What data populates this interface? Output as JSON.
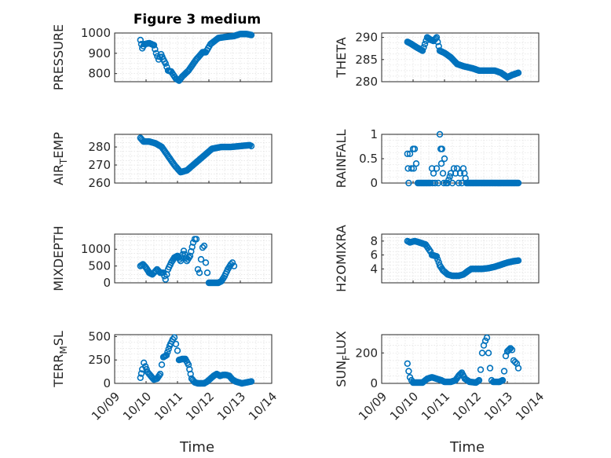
{
  "figure": {
    "title": "Figure 3 medium",
    "x_label": "Time",
    "marker_color": "#0072BD",
    "axis_color": "#262626",
    "grid_color": "#d9d9d9"
  },
  "chart_data": [
    {
      "type": "scatter",
      "ylabel": "PRESSURE",
      "xlim": [
        "10/09",
        "10/14"
      ],
      "ylim": [
        760,
        1000
      ],
      "yticks": [
        800,
        900,
        1000
      ],
      "x_day_range": [
        9.8,
        13.6
      ],
      "xticks": [],
      "grid": true,
      "keypoints": [
        [
          9.82,
          965
        ],
        [
          9.88,
          925
        ],
        [
          9.95,
          945
        ],
        [
          10.1,
          950
        ],
        [
          10.25,
          940
        ],
        [
          10.32,
          900
        ],
        [
          10.4,
          870
        ],
        [
          10.48,
          895
        ],
        [
          10.55,
          870
        ],
        [
          10.62,
          850
        ],
        [
          10.7,
          815
        ],
        [
          10.8,
          810
        ],
        [
          10.95,
          775
        ],
        [
          11.05,
          765
        ],
        [
          11.15,
          785
        ],
        [
          11.35,
          815
        ],
        [
          11.6,
          870
        ],
        [
          11.8,
          905
        ],
        [
          11.9,
          905
        ],
        [
          12.05,
          945
        ],
        [
          12.3,
          975
        ],
        [
          12.5,
          980
        ],
        [
          12.8,
          985
        ],
        [
          13.0,
          995
        ],
        [
          13.2,
          995
        ],
        [
          13.35,
          990
        ]
      ]
    },
    {
      "type": "scatter",
      "ylabel": "THETA",
      "xlim": [
        "10/09",
        "10/14"
      ],
      "ylim": [
        280,
        291
      ],
      "yticks": [
        280,
        285,
        290
      ],
      "x_day_range": [
        9.8,
        13.6
      ],
      "xticks": [],
      "grid": true,
      "keypoints": [
        [
          9.82,
          289
        ],
        [
          9.95,
          288.5
        ],
        [
          10.1,
          287.8
        ],
        [
          10.3,
          287
        ],
        [
          10.45,
          290
        ],
        [
          10.55,
          289.5
        ],
        [
          10.65,
          289.2
        ],
        [
          10.75,
          290
        ],
        [
          10.85,
          287
        ],
        [
          11.0,
          286.5
        ],
        [
          11.2,
          285.5
        ],
        [
          11.4,
          284
        ],
        [
          11.6,
          283.5
        ],
        [
          11.9,
          283
        ],
        [
          12.1,
          282.5
        ],
        [
          12.4,
          282.5
        ],
        [
          12.6,
          282.5
        ],
        [
          12.8,
          282
        ],
        [
          13.0,
          281
        ],
        [
          13.15,
          281.5
        ],
        [
          13.35,
          282
        ]
      ]
    },
    {
      "type": "scatter",
      "ylabel": "AIR_TEMP",
      "xlim": [
        "10/09",
        "10/14"
      ],
      "ylim": [
        260,
        287
      ],
      "yticks": [
        260,
        270,
        280
      ],
      "x_day_range": [
        9.8,
        13.6
      ],
      "xticks": [],
      "grid": true,
      "keypoints": [
        [
          9.82,
          285
        ],
        [
          9.92,
          283
        ],
        [
          10.1,
          283
        ],
        [
          10.3,
          282
        ],
        [
          10.5,
          280
        ],
        [
          10.7,
          275
        ],
        [
          10.9,
          270
        ],
        [
          11.1,
          266
        ],
        [
          11.3,
          267
        ],
        [
          11.5,
          270
        ],
        [
          11.7,
          273
        ],
        [
          11.9,
          276
        ],
        [
          12.1,
          279
        ],
        [
          12.4,
          280
        ],
        [
          12.7,
          280
        ],
        [
          13.0,
          280.5
        ],
        [
          13.3,
          281
        ],
        [
          13.35,
          280.5
        ]
      ]
    },
    {
      "type": "scatter",
      "ylabel": "RAINFALL",
      "xlim": [
        "10/09",
        "10/14"
      ],
      "ylim": [
        0,
        1
      ],
      "yticks": [
        0,
        0.5,
        1
      ],
      "x_day_range": [
        9.8,
        13.6
      ],
      "xticks": [],
      "grid": true,
      "keypoints": [
        [
          9.82,
          0.6
        ],
        [
          9.84,
          0.3
        ],
        [
          9.86,
          0
        ],
        [
          9.9,
          0.6
        ],
        [
          9.95,
          0.3
        ],
        [
          10.0,
          0.7
        ],
        [
          10.02,
          0.3
        ],
        [
          10.05,
          0.7
        ],
        [
          10.1,
          0.4
        ],
        [
          10.15,
          0
        ],
        [
          10.3,
          0
        ],
        [
          10.55,
          0
        ],
        [
          10.6,
          0.3
        ],
        [
          10.62,
          0
        ],
        [
          10.65,
          0.2
        ],
        [
          10.7,
          0
        ],
        [
          10.75,
          0.3
        ],
        [
          10.8,
          0
        ],
        [
          10.85,
          1
        ],
        [
          10.88,
          0.7
        ],
        [
          10.9,
          0.4
        ],
        [
          10.92,
          0.7
        ],
        [
          10.95,
          0.2
        ],
        [
          10.98,
          0
        ],
        [
          11.0,
          0.5
        ],
        [
          11.05,
          0
        ],
        [
          11.1,
          0
        ],
        [
          11.2,
          0.2
        ],
        [
          11.25,
          0
        ],
        [
          11.3,
          0.3
        ],
        [
          11.35,
          0.2
        ],
        [
          11.4,
          0.3
        ],
        [
          11.45,
          0
        ],
        [
          11.5,
          0.2
        ],
        [
          11.55,
          0
        ],
        [
          11.6,
          0.3
        ],
        [
          11.7,
          0
        ],
        [
          13.35,
          0
        ]
      ]
    },
    {
      "type": "scatter",
      "ylabel": "MIXDEPTH",
      "xlim": [
        "10/09",
        "10/14"
      ],
      "ylim": [
        0,
        1450
      ],
      "yticks": [
        0,
        500,
        1000
      ],
      "x_day_range": [
        9.8,
        13.6
      ],
      "xticks": [],
      "grid": true,
      "keypoints": [
        [
          9.82,
          500
        ],
        [
          9.9,
          550
        ],
        [
          10.0,
          450
        ],
        [
          10.1,
          300
        ],
        [
          10.2,
          250
        ],
        [
          10.35,
          400
        ],
        [
          10.45,
          300
        ],
        [
          10.55,
          300
        ],
        [
          10.62,
          100
        ],
        [
          10.7,
          400
        ],
        [
          10.8,
          600
        ],
        [
          10.9,
          750
        ],
        [
          11.0,
          800
        ],
        [
          11.1,
          650
        ],
        [
          11.2,
          950
        ],
        [
          11.3,
          650
        ],
        [
          11.4,
          800
        ],
        [
          11.5,
          1200
        ],
        [
          11.55,
          1300
        ],
        [
          11.6,
          1300
        ],
        [
          11.65,
          400
        ],
        [
          11.7,
          300
        ],
        [
          11.75,
          700
        ],
        [
          11.8,
          1050
        ],
        [
          11.85,
          1100
        ],
        [
          11.9,
          600
        ],
        [
          11.95,
          300
        ],
        [
          12.0,
          0
        ],
        [
          12.3,
          0
        ],
        [
          12.4,
          50
        ],
        [
          12.5,
          200
        ],
        [
          12.6,
          400
        ],
        [
          12.7,
          550
        ],
        [
          12.75,
          600
        ],
        [
          12.8,
          500
        ]
      ]
    },
    {
      "type": "scatter",
      "ylabel": "H2OMIXRA",
      "xlim": [
        "10/09",
        "10/14"
      ],
      "ylim": [
        2,
        9
      ],
      "yticks": [
        4,
        6,
        8
      ],
      "x_day_range": [
        9.8,
        13.6
      ],
      "xticks": [],
      "grid": true,
      "keypoints": [
        [
          9.82,
          8
        ],
        [
          9.9,
          7.8
        ],
        [
          10.05,
          8
        ],
        [
          10.2,
          7.8
        ],
        [
          10.4,
          7.5
        ],
        [
          10.55,
          6.5
        ],
        [
          10.6,
          6.0
        ],
        [
          10.75,
          5.8
        ],
        [
          10.85,
          4.5
        ],
        [
          10.95,
          3.8
        ],
        [
          11.1,
          3.2
        ],
        [
          11.25,
          3.0
        ],
        [
          11.35,
          3.0
        ],
        [
          11.45,
          3.0
        ],
        [
          11.6,
          3.2
        ],
        [
          11.75,
          3.7
        ],
        [
          11.85,
          4.0
        ],
        [
          12.0,
          4.0
        ],
        [
          12.2,
          4.0
        ],
        [
          12.4,
          4.1
        ],
        [
          12.6,
          4.3
        ],
        [
          12.8,
          4.6
        ],
        [
          13.0,
          4.9
        ],
        [
          13.2,
          5.1
        ],
        [
          13.35,
          5.2
        ]
      ]
    },
    {
      "type": "scatter",
      "ylabel": "TERR_MSL",
      "xlim": [
        "10/09",
        "10/14"
      ],
      "ylim": [
        0,
        520
      ],
      "yticks": [
        0,
        250,
        500
      ],
      "x_day_range": [
        9.8,
        13.6
      ],
      "xticks": [
        "10/09",
        "10/10",
        "10/11",
        "10/12",
        "10/13",
        "10/14"
      ],
      "grid": true,
      "keypoints": [
        [
          9.82,
          60
        ],
        [
          9.88,
          150
        ],
        [
          9.93,
          220
        ],
        [
          9.98,
          180
        ],
        [
          10.05,
          120
        ],
        [
          10.15,
          80
        ],
        [
          10.25,
          40
        ],
        [
          10.35,
          50
        ],
        [
          10.45,
          100
        ],
        [
          10.5,
          200
        ],
        [
          10.55,
          280
        ],
        [
          10.65,
          300
        ],
        [
          10.75,
          400
        ],
        [
          10.85,
          470
        ],
        [
          10.9,
          490
        ],
        [
          10.95,
          420
        ],
        [
          11.0,
          350
        ],
        [
          11.05,
          250
        ],
        [
          11.15,
          260
        ],
        [
          11.25,
          260
        ],
        [
          11.35,
          200
        ],
        [
          11.45,
          50
        ],
        [
          11.55,
          10
        ],
        [
          11.65,
          0
        ],
        [
          11.85,
          0
        ],
        [
          11.95,
          20
        ],
        [
          12.05,
          50
        ],
        [
          12.15,
          80
        ],
        [
          12.25,
          100
        ],
        [
          12.35,
          80
        ],
        [
          12.45,
          90
        ],
        [
          12.55,
          90
        ],
        [
          12.65,
          80
        ],
        [
          12.75,
          40
        ],
        [
          12.85,
          20
        ],
        [
          12.95,
          10
        ],
        [
          13.05,
          0
        ],
        [
          13.2,
          10
        ],
        [
          13.35,
          20
        ]
      ]
    },
    {
      "type": "scatter",
      "ylabel": "SUN_FLUX",
      "xlim": [
        "10/09",
        "10/14"
      ],
      "ylim": [
        0,
        320
      ],
      "yticks": [
        0,
        200
      ],
      "x_day_range": [
        9.8,
        13.6
      ],
      "xticks": [
        "10/09",
        "10/10",
        "10/11",
        "10/12",
        "10/13",
        "10/14"
      ],
      "grid": true,
      "keypoints": [
        [
          9.82,
          130
        ],
        [
          9.86,
          80
        ],
        [
          9.9,
          40
        ],
        [
          9.95,
          20
        ],
        [
          10.0,
          5
        ],
        [
          10.3,
          5
        ],
        [
          10.45,
          30
        ],
        [
          10.6,
          40
        ],
        [
          10.75,
          30
        ],
        [
          10.9,
          20
        ],
        [
          11.0,
          10
        ],
        [
          11.2,
          10
        ],
        [
          11.35,
          20
        ],
        [
          11.45,
          50
        ],
        [
          11.55,
          70
        ],
        [
          11.65,
          30
        ],
        [
          11.8,
          10
        ],
        [
          12.0,
          5
        ],
        [
          12.1,
          20
        ],
        [
          12.15,
          90
        ],
        [
          12.2,
          200
        ],
        [
          12.25,
          250
        ],
        [
          12.3,
          280
        ],
        [
          12.35,
          300
        ],
        [
          12.4,
          200
        ],
        [
          12.45,
          100
        ],
        [
          12.5,
          20
        ],
        [
          12.55,
          10
        ],
        [
          12.75,
          10
        ],
        [
          12.85,
          20
        ],
        [
          12.9,
          80
        ],
        [
          12.95,
          180
        ],
        [
          13.0,
          210
        ],
        [
          13.1,
          230
        ],
        [
          13.15,
          220
        ],
        [
          13.2,
          150
        ],
        [
          13.25,
          140
        ],
        [
          13.3,
          130
        ],
        [
          13.35,
          100
        ]
      ]
    }
  ]
}
